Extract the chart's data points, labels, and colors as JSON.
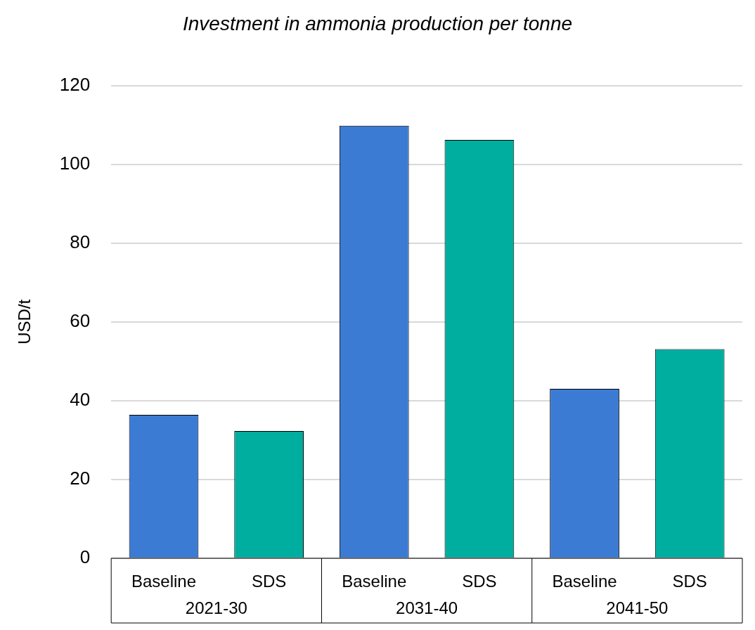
{
  "chart_data": {
    "type": "bar",
    "title": "Investment in ammonia production per tonne",
    "ylabel": "USD/t",
    "categories": [
      "Baseline",
      "SDS",
      "Baseline",
      "SDS",
      "Baseline",
      "SDS"
    ],
    "values": [
      36.4,
      32.3,
      109.8,
      106.2,
      43.0,
      53.1
    ],
    "colors": [
      "#3c7bd4",
      "#00ae9f",
      "#3c7bd4",
      "#00ae9f",
      "#3c7bd4",
      "#00ae9f"
    ],
    "annotations": [
      "2021-30",
      "2031-40",
      "2041-50"
    ],
    "ylim": [
      0,
      120
    ],
    "yticks": [
      0,
      20,
      40,
      60,
      80,
      100,
      120
    ],
    "grid": "y"
  }
}
